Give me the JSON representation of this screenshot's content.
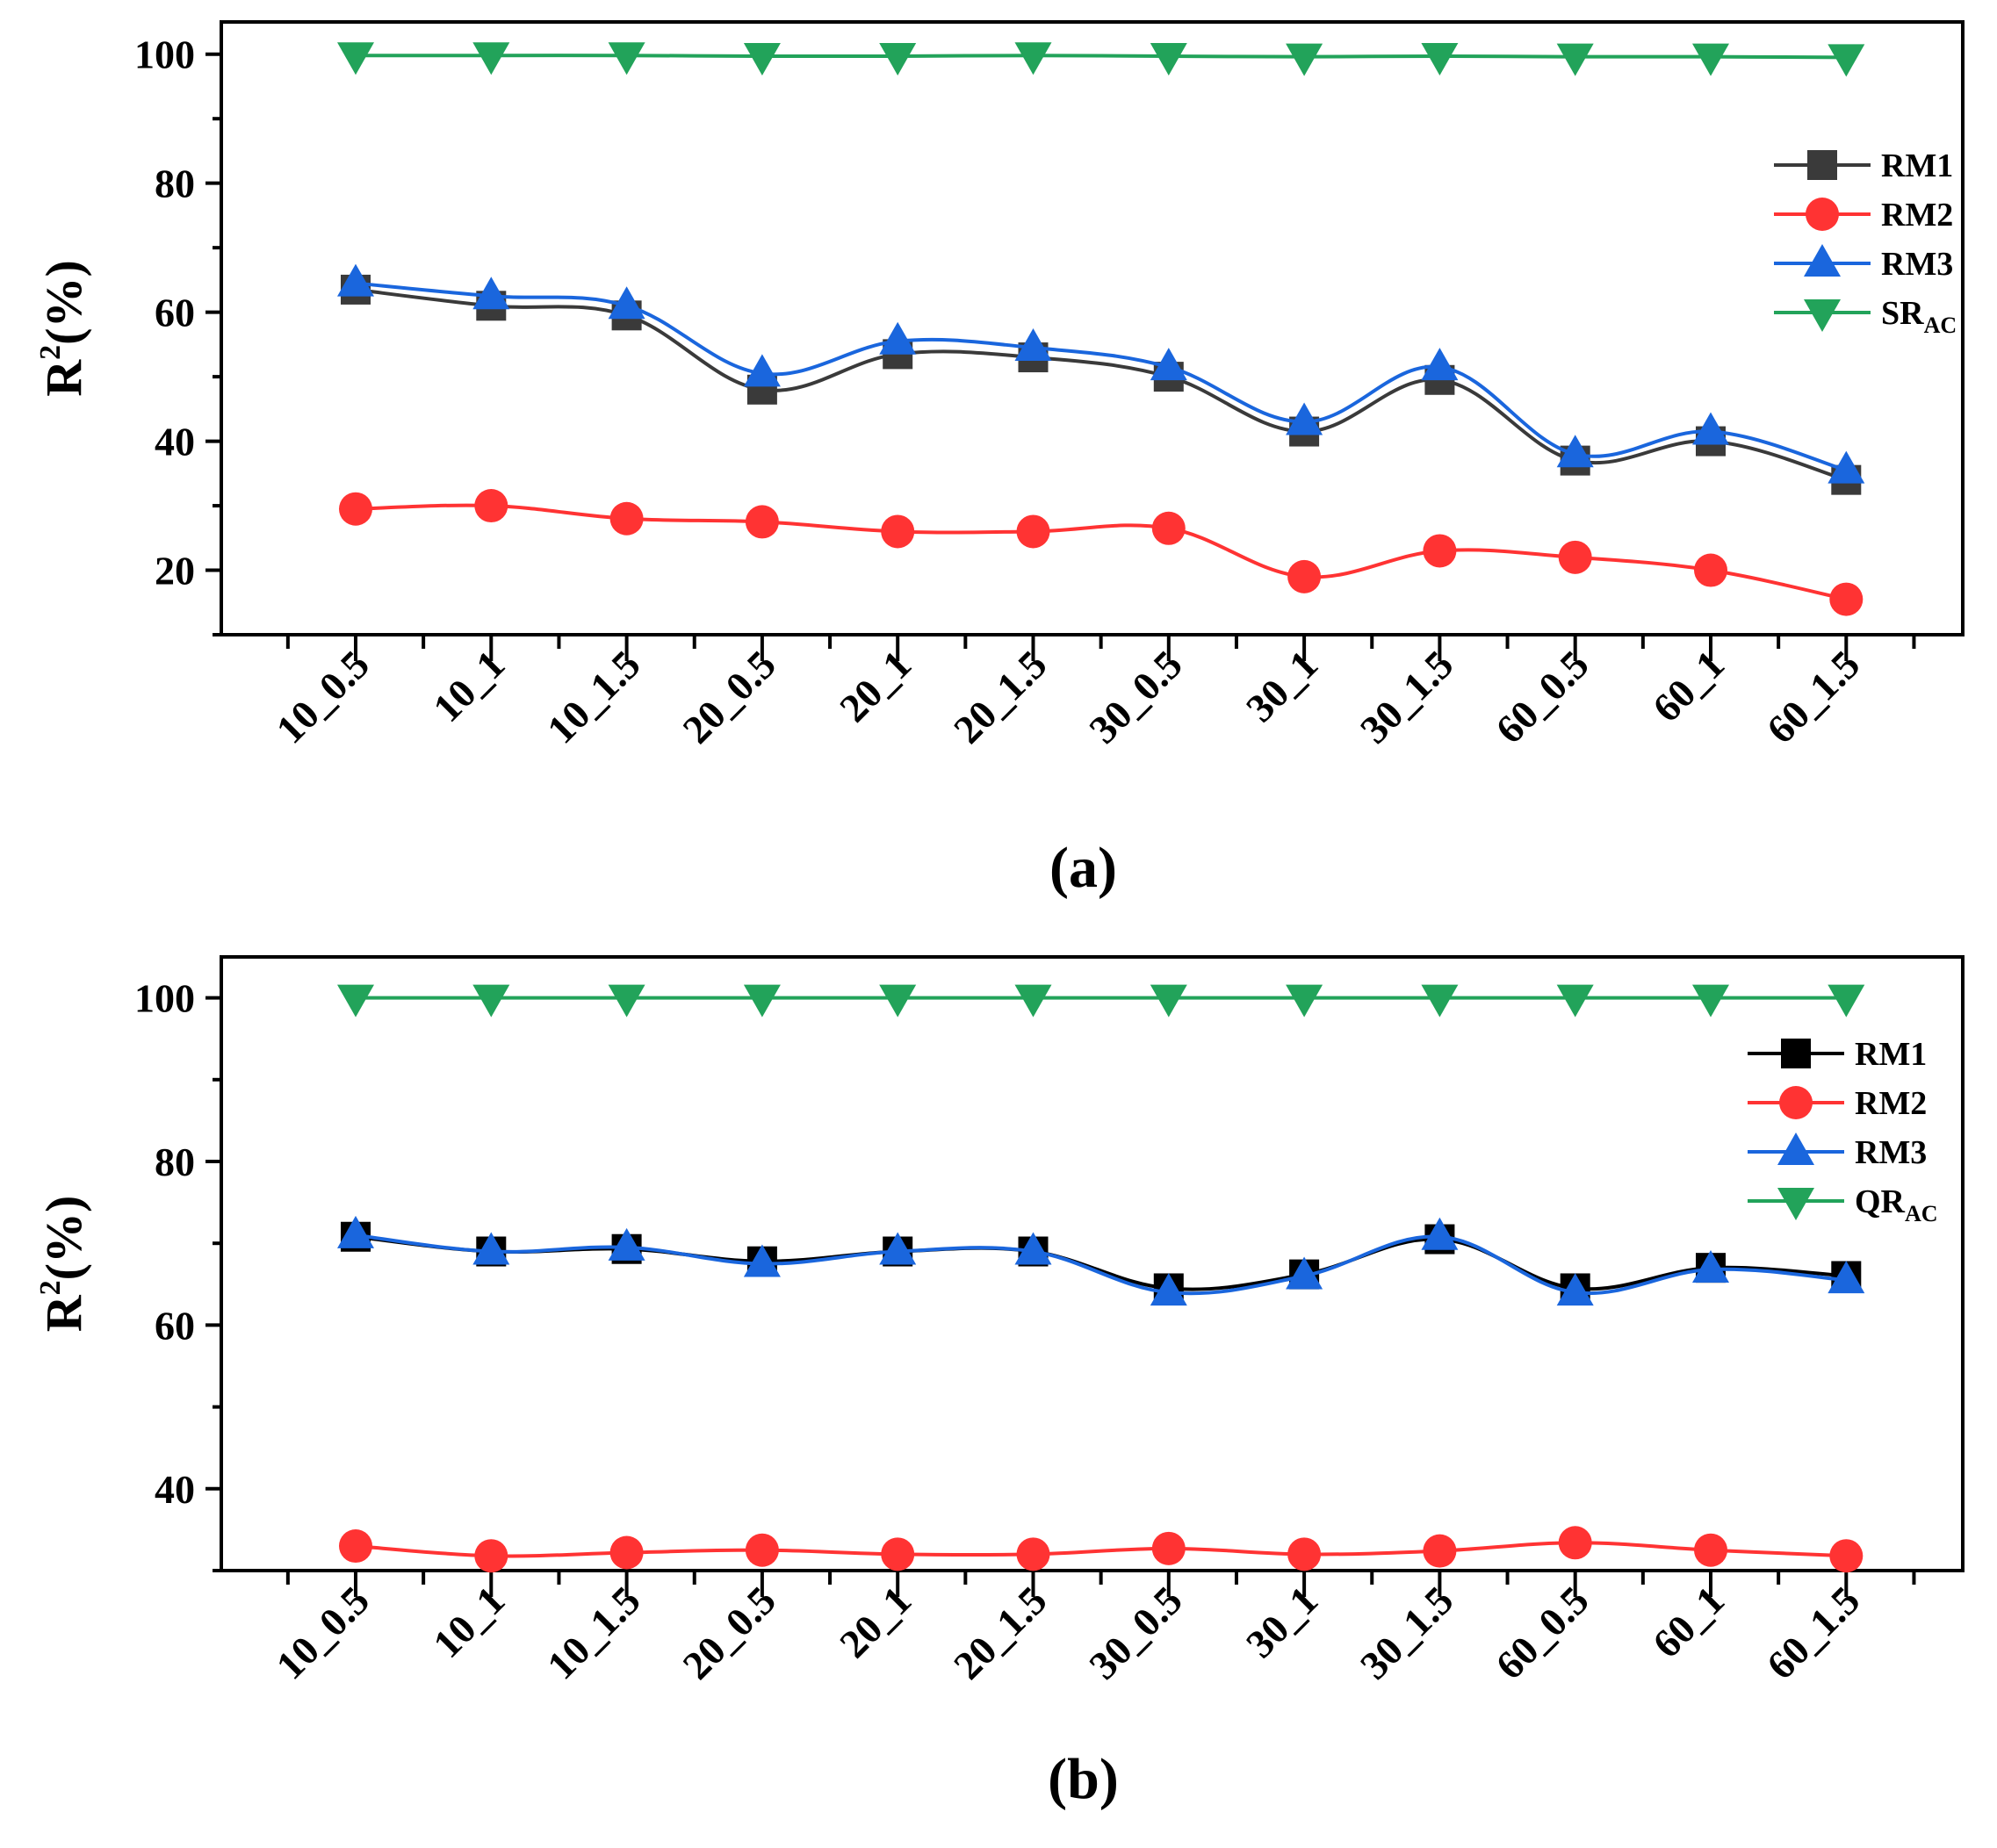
{
  "colors": {
    "RM1_a": "#3a3a3a",
    "RM1_b": "#000000",
    "RM2": "#ff3333",
    "RM3": "#1a66dd",
    "REF": "#22a35a"
  },
  "chart_data": [
    {
      "type": "line",
      "panel_label": "(a)",
      "ylabel": "R",
      "ylabel_sup": "2",
      "ylabel_suffix": "(%)",
      "xlabel": "",
      "ylim": [
        10,
        105
      ],
      "yticks": [
        20,
        40,
        60,
        80,
        100
      ],
      "yticks_label": [
        "20",
        "40",
        "60",
        "80",
        "100"
      ],
      "categories": [
        "10_0.5",
        "10_1",
        "10_1.5",
        "20_0.5",
        "20_1",
        "20_1.5",
        "30_0.5",
        "30_1",
        "30_1.5",
        "60_0.5",
        "60_1",
        "60_1.5"
      ],
      "series": [
        {
          "name": "RM1",
          "name_sub": "",
          "marker": "square",
          "color_key": "RM1_a",
          "values": [
            63.5,
            61.0,
            59.5,
            48.0,
            53.5,
            53.0,
            50.0,
            41.5,
            49.5,
            37.0,
            40.0,
            34.0
          ]
        },
        {
          "name": "RM2",
          "name_sub": "",
          "marker": "circle",
          "color_key": "RM2",
          "values": [
            29.5,
            30.0,
            28.0,
            27.5,
            26.0,
            26.0,
            26.5,
            19.0,
            23.0,
            22.0,
            20.0,
            15.5
          ]
        },
        {
          "name": "RM3",
          "name_sub": "",
          "marker": "triangle-up",
          "color_key": "RM3",
          "values": [
            64.5,
            62.5,
            61.0,
            50.5,
            55.5,
            54.5,
            51.5,
            43.0,
            51.5,
            38.0,
            41.5,
            35.5
          ]
        },
        {
          "name": "SR",
          "name_sub": "AC",
          "marker": "triangle-down",
          "color_key": "REF",
          "values": [
            99.8,
            99.8,
            99.8,
            99.7,
            99.7,
            99.8,
            99.7,
            99.6,
            99.7,
            99.6,
            99.6,
            99.5
          ]
        }
      ],
      "legend_position": "top-right"
    },
    {
      "type": "line",
      "panel_label": "(b)",
      "ylabel": "R",
      "ylabel_sup": "2",
      "ylabel_suffix": "(%)",
      "xlabel": "",
      "ylim": [
        30,
        105
      ],
      "yticks": [
        40,
        60,
        80,
        100
      ],
      "yticks_label": [
        "40",
        "60",
        "80",
        "100"
      ],
      "categories": [
        "10_0.5",
        "10_1",
        "10_1.5",
        "20_0.5",
        "20_1",
        "20_1.5",
        "30_0.5",
        "30_1",
        "30_1.5",
        "60_0.5",
        "60_1",
        "60_1.5"
      ],
      "series": [
        {
          "name": "RM1",
          "name_sub": "",
          "marker": "square",
          "color_key": "RM1_b",
          "values": [
            70.8,
            69.0,
            69.3,
            67.8,
            69.0,
            69.0,
            64.5,
            66.2,
            70.5,
            64.5,
            67.0,
            66.0
          ]
        },
        {
          "name": "RM2",
          "name_sub": "",
          "marker": "circle",
          "color_key": "RM2",
          "values": [
            33.0,
            31.8,
            32.2,
            32.5,
            32.0,
            32.0,
            32.7,
            32.0,
            32.4,
            33.4,
            32.5,
            31.8
          ]
        },
        {
          "name": "RM3",
          "name_sub": "",
          "marker": "triangle-up",
          "color_key": "RM3",
          "values": [
            71.0,
            69.0,
            69.5,
            67.5,
            69.0,
            69.0,
            64.0,
            66.0,
            70.8,
            64.0,
            66.8,
            65.5
          ]
        },
        {
          "name": "QR",
          "name_sub": "AC",
          "marker": "triangle-down",
          "color_key": "REF",
          "values": [
            100.0,
            100.0,
            100.0,
            100.0,
            100.0,
            100.0,
            100.0,
            100.0,
            100.0,
            100.0,
            100.0,
            100.0
          ]
        }
      ],
      "legend_position": "top-right"
    }
  ]
}
